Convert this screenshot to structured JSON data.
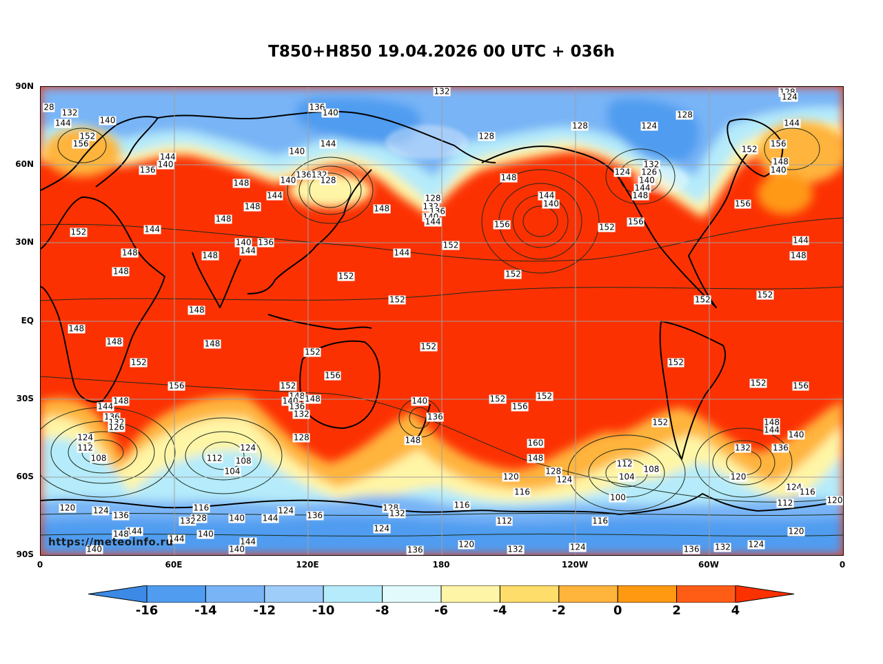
{
  "title": "T850+H850 19.04.2026 00 UTC + 036h",
  "watermark": "https://meteoinfo.ru",
  "lat_labels": [
    "90N",
    "60N",
    "30N",
    "EQ",
    "30S",
    "60S",
    "90S"
  ],
  "lon_labels": [
    "0",
    "60E",
    "120E",
    "180",
    "120W",
    "60W",
    "0"
  ],
  "colorbar": {
    "ticks": [
      "-16",
      "-14",
      "-12",
      "-10",
      "-8",
      "-6",
      "-4",
      "-2",
      "0",
      "2",
      "4"
    ],
    "colors": [
      "#3c8ae6",
      "#4f9cf0",
      "#78b4f6",
      "#9ecdfa",
      "#b5ebfa",
      "#e2fafc",
      "#fff5a6",
      "#ffdd6a",
      "#ffb43c",
      "#ff9912",
      "#ff5d16",
      "#fc3102"
    ]
  },
  "height_labels": [
    {
      "t": "132",
      "lon": 180,
      "lat": 89
    },
    {
      "t": "128",
      "lon": 335,
      "lat": 88
    },
    {
      "t": "124",
      "lon": 336,
      "lat": 86
    },
    {
      "t": "28",
      "lon": 3,
      "lat": 82
    },
    {
      "t": "132",
      "lon": 13,
      "lat": 80
    },
    {
      "t": "144",
      "lon": 10,
      "lat": 76
    },
    {
      "t": "140",
      "lon": 30,
      "lat": 77
    },
    {
      "t": "152",
      "lon": 21,
      "lat": 71
    },
    {
      "t": "156",
      "lon": 18,
      "lat": 68
    },
    {
      "t": "136",
      "lon": 124,
      "lat": 82
    },
    {
      "t": "140",
      "lon": 130,
      "lat": 80
    },
    {
      "t": "144",
      "lon": 129,
      "lat": 68
    },
    {
      "t": "140",
      "lon": 115,
      "lat": 65
    },
    {
      "t": "128",
      "lon": 200,
      "lat": 71
    },
    {
      "t": "128",
      "lon": 242,
      "lat": 75
    },
    {
      "t": "124",
      "lon": 273,
      "lat": 75
    },
    {
      "t": "128",
      "lon": 289,
      "lat": 79
    },
    {
      "t": "144",
      "lon": 337,
      "lat": 76
    },
    {
      "t": "152",
      "lon": 318,
      "lat": 66
    },
    {
      "t": "156",
      "lon": 331,
      "lat": 68
    },
    {
      "t": "148",
      "lon": 332,
      "lat": 61
    },
    {
      "t": "140",
      "lon": 331,
      "lat": 58
    },
    {
      "t": "144",
      "lon": 57,
      "lat": 63
    },
    {
      "t": "136",
      "lon": 48,
      "lat": 58
    },
    {
      "t": "140",
      "lon": 56,
      "lat": 60
    },
    {
      "t": "148",
      "lon": 90,
      "lat": 53
    },
    {
      "t": "140",
      "lon": 111,
      "lat": 54
    },
    {
      "t": "136",
      "lon": 118,
      "lat": 56
    },
    {
      "t": "132",
      "lon": 125,
      "lat": 56
    },
    {
      "t": "128",
      "lon": 129,
      "lat": 54
    },
    {
      "t": "144",
      "lon": 105,
      "lat": 48
    },
    {
      "t": "148",
      "lon": 95,
      "lat": 44
    },
    {
      "t": "148",
      "lon": 82,
      "lat": 39
    },
    {
      "t": "148",
      "lon": 153,
      "lat": 43
    },
    {
      "t": "128",
      "lon": 176,
      "lat": 47
    },
    {
      "t": "132",
      "lon": 175,
      "lat": 44
    },
    {
      "t": "136",
      "lon": 178,
      "lat": 42
    },
    {
      "t": "140",
      "lon": 175,
      "lat": 40
    },
    {
      "t": "144",
      "lon": 176,
      "lat": 38
    },
    {
      "t": "148",
      "lon": 210,
      "lat": 55
    },
    {
      "t": "144",
      "lon": 227,
      "lat": 48
    },
    {
      "t": "140",
      "lon": 229,
      "lat": 45
    },
    {
      "t": "156",
      "lon": 207,
      "lat": 37
    },
    {
      "t": "124",
      "lon": 261,
      "lat": 57
    },
    {
      "t": "132",
      "lon": 274,
      "lat": 60
    },
    {
      "t": "126",
      "lon": 273,
      "lat": 57
    },
    {
      "t": "140",
      "lon": 272,
      "lat": 54
    },
    {
      "t": "144",
      "lon": 270,
      "lat": 51
    },
    {
      "t": "148",
      "lon": 269,
      "lat": 48
    },
    {
      "t": "152",
      "lon": 254,
      "lat": 36
    },
    {
      "t": "156",
      "lon": 267,
      "lat": 38
    },
    {
      "t": "156",
      "lon": 315,
      "lat": 45
    },
    {
      "t": "152",
      "lon": 17,
      "lat": 34
    },
    {
      "t": "144",
      "lon": 50,
      "lat": 35
    },
    {
      "t": "140",
      "lon": 91,
      "lat": 30
    },
    {
      "t": "136",
      "lon": 101,
      "lat": 30
    },
    {
      "t": "144",
      "lon": 93,
      "lat": 27
    },
    {
      "t": "148",
      "lon": 40,
      "lat": 26
    },
    {
      "t": "148",
      "lon": 76,
      "lat": 25
    },
    {
      "t": "148",
      "lon": 36,
      "lat": 19
    },
    {
      "t": "144",
      "lon": 162,
      "lat": 26
    },
    {
      "t": "152",
      "lon": 184,
      "lat": 29
    },
    {
      "t": "152",
      "lon": 137,
      "lat": 17
    },
    {
      "t": "152",
      "lon": 212,
      "lat": 18
    },
    {
      "t": "152",
      "lon": 160,
      "lat": 8
    },
    {
      "t": "152",
      "lon": 297,
      "lat": 8
    },
    {
      "t": "152",
      "lon": 325,
      "lat": 10
    },
    {
      "t": "144",
      "lon": 341,
      "lat": 31
    },
    {
      "t": "148",
      "lon": 340,
      "lat": 25
    },
    {
      "t": "148",
      "lon": 70,
      "lat": 4
    },
    {
      "t": "148",
      "lon": 16,
      "lat": -3
    },
    {
      "t": "148",
      "lon": 33,
      "lat": -8
    },
    {
      "t": "148",
      "lon": 77,
      "lat": -9
    },
    {
      "t": "152",
      "lon": 122,
      "lat": -12
    },
    {
      "t": "152",
      "lon": 174,
      "lat": -10
    },
    {
      "t": "152",
      "lon": 44,
      "lat": -16
    },
    {
      "t": "152",
      "lon": 285,
      "lat": -16
    },
    {
      "t": "156",
      "lon": 61,
      "lat": -25
    },
    {
      "t": "152",
      "lon": 111,
      "lat": -25
    },
    {
      "t": "156",
      "lon": 131,
      "lat": -21
    },
    {
      "t": "152",
      "lon": 322,
      "lat": -24
    },
    {
      "t": "156",
      "lon": 341,
      "lat": -25
    },
    {
      "t": "148",
      "lon": 115,
      "lat": -29
    },
    {
      "t": "148",
      "lon": 122,
      "lat": -30
    },
    {
      "t": "140",
      "lon": 112,
      "lat": -31
    },
    {
      "t": "136",
      "lon": 115,
      "lat": -33
    },
    {
      "t": "132",
      "lon": 117,
      "lat": -36
    },
    {
      "t": "128",
      "lon": 117,
      "lat": -45
    },
    {
      "t": "148",
      "lon": 36,
      "lat": -31
    },
    {
      "t": "144",
      "lon": 29,
      "lat": -33
    },
    {
      "t": "136",
      "lon": 32,
      "lat": -37
    },
    {
      "t": "132",
      "lon": 34,
      "lat": -39
    },
    {
      "t": "126",
      "lon": 34,
      "lat": -41
    },
    {
      "t": "124",
      "lon": 20,
      "lat": -45
    },
    {
      "t": "112",
      "lon": 20,
      "lat": -49
    },
    {
      "t": "108",
      "lon": 26,
      "lat": -53
    },
    {
      "t": "124",
      "lon": 93,
      "lat": -49
    },
    {
      "t": "112",
      "lon": 78,
      "lat": -53
    },
    {
      "t": "108",
      "lon": 91,
      "lat": -54
    },
    {
      "t": "104",
      "lon": 86,
      "lat": -58
    },
    {
      "t": "140",
      "lon": 170,
      "lat": -31
    },
    {
      "t": "136",
      "lon": 177,
      "lat": -37
    },
    {
      "t": "148",
      "lon": 167,
      "lat": -46
    },
    {
      "t": "152",
      "lon": 205,
      "lat": -30
    },
    {
      "t": "152",
      "lon": 226,
      "lat": -29
    },
    {
      "t": "156",
      "lon": 215,
      "lat": -33
    },
    {
      "t": "160",
      "lon": 222,
      "lat": -47
    },
    {
      "t": "148",
      "lon": 222,
      "lat": -53
    },
    {
      "t": "128",
      "lon": 230,
      "lat": -58
    },
    {
      "t": "124",
      "lon": 235,
      "lat": -61
    },
    {
      "t": "120",
      "lon": 211,
      "lat": -60
    },
    {
      "t": "116",
      "lon": 216,
      "lat": -66
    },
    {
      "t": "112",
      "lon": 262,
      "lat": -55
    },
    {
      "t": "108",
      "lon": 274,
      "lat": -57
    },
    {
      "t": "104",
      "lon": 263,
      "lat": -60
    },
    {
      "t": "100",
      "lon": 259,
      "lat": -68
    },
    {
      "t": "152",
      "lon": 278,
      "lat": -39
    },
    {
      "t": "148",
      "lon": 328,
      "lat": -39
    },
    {
      "t": "144",
      "lon": 328,
      "lat": -42
    },
    {
      "t": "140",
      "lon": 339,
      "lat": -44
    },
    {
      "t": "136",
      "lon": 332,
      "lat": -49
    },
    {
      "t": "132",
      "lon": 315,
      "lat": -49
    },
    {
      "t": "120",
      "lon": 313,
      "lat": -60
    },
    {
      "t": "124",
      "lon": 338,
      "lat": -64
    },
    {
      "t": "116",
      "lon": 344,
      "lat": -66
    },
    {
      "t": "112",
      "lon": 334,
      "lat": -70
    },
    {
      "t": "120",
      "lon": 357,
      "lat": -69
    },
    {
      "t": "120",
      "lon": 339,
      "lat": -81
    },
    {
      "t": "124",
      "lon": 321,
      "lat": -86
    },
    {
      "t": "132",
      "lon": 306,
      "lat": -87
    },
    {
      "t": "136",
      "lon": 292,
      "lat": -88
    },
    {
      "t": "124",
      "lon": 241,
      "lat": -87
    },
    {
      "t": "132",
      "lon": 213,
      "lat": -88
    },
    {
      "t": "120",
      "lon": 191,
      "lat": -86
    },
    {
      "t": "136",
      "lon": 168,
      "lat": -89
    },
    {
      "t": "116",
      "lon": 251,
      "lat": -77
    },
    {
      "t": "112",
      "lon": 208,
      "lat": -77
    },
    {
      "t": "116",
      "lon": 189,
      "lat": -71
    },
    {
      "t": "128",
      "lon": 157,
      "lat": -72
    },
    {
      "t": "132",
      "lon": 160,
      "lat": -74
    },
    {
      "t": "124",
      "lon": 153,
      "lat": -80
    },
    {
      "t": "136",
      "lon": 123,
      "lat": -75
    },
    {
      "t": "124",
      "lon": 110,
      "lat": -73
    },
    {
      "t": "144",
      "lon": 103,
      "lat": -76
    },
    {
      "t": "140",
      "lon": 88,
      "lat": -76
    },
    {
      "t": "144",
      "lon": 93,
      "lat": -85
    },
    {
      "t": "140",
      "lon": 88,
      "lat": -88
    },
    {
      "t": "116",
      "lon": 72,
      "lat": -72
    },
    {
      "t": "128",
      "lon": 71,
      "lat": -76
    },
    {
      "t": "132",
      "lon": 66,
      "lat": -77
    },
    {
      "t": "140",
      "lon": 74,
      "lat": -82
    },
    {
      "t": "144",
      "lon": 61,
      "lat": -84
    },
    {
      "t": "124",
      "lon": 27,
      "lat": -73
    },
    {
      "t": "136",
      "lon": 36,
      "lat": -75
    },
    {
      "t": "120",
      "lon": 12,
      "lat": -72
    },
    {
      "t": "144",
      "lon": 42,
      "lat": -81
    },
    {
      "t": "148",
      "lon": 36,
      "lat": -82
    },
    {
      "t": "140",
      "lon": 24,
      "lat": -88
    }
  ]
}
